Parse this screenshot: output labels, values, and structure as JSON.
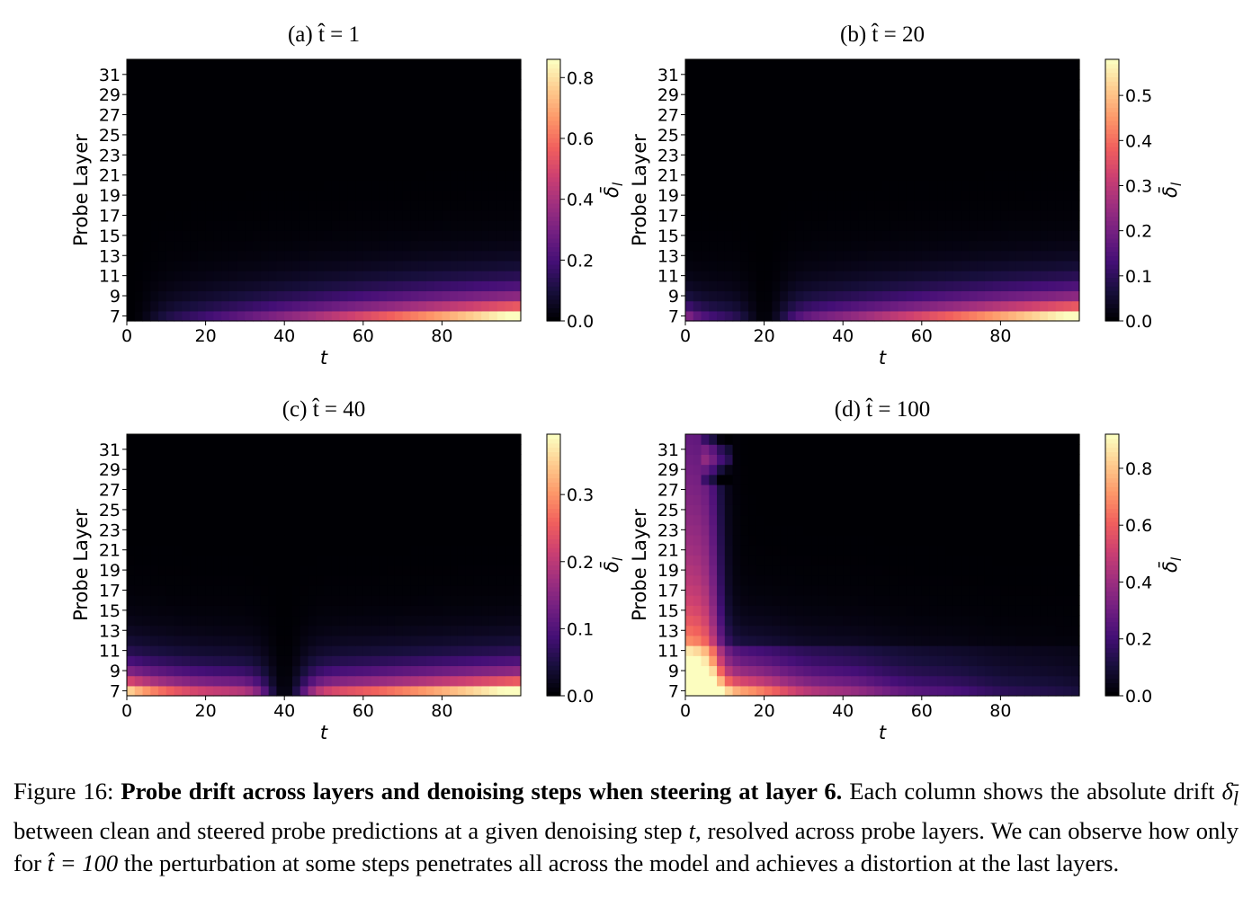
{
  "figure": {
    "number_label": "Figure 16:",
    "bold_title": "Probe drift across layers and denoising steps when steering at layer 6.",
    "body_part1": "Each column shows the absolute drift ",
    "drift_symbol": "δ̄",
    "drift_subscript": "l",
    "body_part2": " between clean and steered probe predictions at a given denoising step ",
    "t_symbol": "t",
    "body_part3": ", resolved across probe layers. We can observe how only for ",
    "that_expr": "t̂ = 100",
    "body_part4": " the perturbation at some steps penetrates all across the model and achieves a distortion at the last layers."
  },
  "colors": {
    "colormap": "magma",
    "stops": [
      "#000004",
      "#180f3d",
      "#440f76",
      "#721f81",
      "#9e2f7f",
      "#cd4071",
      "#f1605d",
      "#fd9668",
      "#feca8d",
      "#fcfdbf"
    ]
  },
  "chart_data": [
    {
      "type": "heatmap",
      "id": "a",
      "title_prefix": "(a)",
      "title_expr": "t̂ = 1",
      "xlabel": "t",
      "ylabel": "Probe Layer",
      "x_ticks": [
        0,
        20,
        40,
        60,
        80
      ],
      "y_ticks": [
        7,
        9,
        11,
        13,
        15,
        17,
        19,
        21,
        23,
        25,
        27,
        29,
        31
      ],
      "x_range": [
        0,
        99
      ],
      "layers": [
        7,
        32
      ],
      "colorbar_label": "δ̄_l",
      "colorbar_ticks": [
        "0.0",
        "0.2",
        "0.4",
        "0.6",
        "0.8"
      ],
      "vmax": 0.86,
      "steer_step": 1
    },
    {
      "type": "heatmap",
      "id": "b",
      "title_prefix": "(b)",
      "title_expr": "t̂ = 20",
      "xlabel": "t",
      "ylabel": "Probe Layer",
      "x_ticks": [
        0,
        20,
        40,
        60,
        80
      ],
      "y_ticks": [
        7,
        9,
        11,
        13,
        15,
        17,
        19,
        21,
        23,
        25,
        27,
        29,
        31
      ],
      "x_range": [
        0,
        99
      ],
      "layers": [
        7,
        32
      ],
      "colorbar_label": "δ̄_l",
      "colorbar_ticks": [
        "0.0",
        "0.1",
        "0.2",
        "0.3",
        "0.4",
        "0.5"
      ],
      "vmax": 0.58,
      "steer_step": 20
    },
    {
      "type": "heatmap",
      "id": "c",
      "title_prefix": "(c)",
      "title_expr": "t̂ = 40",
      "xlabel": "t",
      "ylabel": "Probe Layer",
      "x_ticks": [
        0,
        20,
        40,
        60,
        80
      ],
      "y_ticks": [
        7,
        9,
        11,
        13,
        15,
        17,
        19,
        21,
        23,
        25,
        27,
        29,
        31
      ],
      "x_range": [
        0,
        99
      ],
      "layers": [
        7,
        32
      ],
      "colorbar_label": "δ̄_l",
      "colorbar_ticks": [
        "0.0",
        "0.1",
        "0.2",
        "0.3"
      ],
      "vmax": 0.39,
      "steer_step": 40
    },
    {
      "type": "heatmap",
      "id": "d",
      "title_prefix": "(d)",
      "title_expr": "t̂ = 100",
      "xlabel": "t",
      "ylabel": "Probe Layer",
      "x_ticks": [
        0,
        20,
        40,
        60,
        80
      ],
      "y_ticks": [
        7,
        9,
        11,
        13,
        15,
        17,
        19,
        21,
        23,
        25,
        27,
        29,
        31
      ],
      "x_range": [
        0,
        99
      ],
      "layers": [
        7,
        32
      ],
      "colorbar_label": "δ̄_l",
      "colorbar_ticks": [
        "0.0",
        "0.2",
        "0.4",
        "0.6",
        "0.8"
      ],
      "vmax": 0.92,
      "steer_step": 100
    }
  ]
}
